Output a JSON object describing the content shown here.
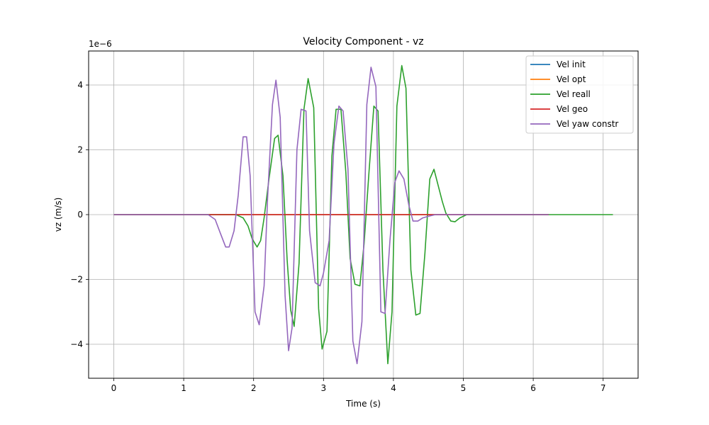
{
  "chart_data": {
    "type": "line",
    "title": "Velocity Component - vz",
    "xlabel": "Time (s)",
    "ylabel": "vz (m/s)",
    "offset_label": "1e−6",
    "xlim": [
      -0.36,
      7.5
    ],
    "ylim": [
      -5.05,
      5.05
    ],
    "xticks": [
      0,
      1,
      2,
      3,
      4,
      5,
      6,
      7
    ],
    "yticks": [
      -4,
      -2,
      0,
      2,
      4
    ],
    "xtick_labels": [
      "0",
      "1",
      "2",
      "3",
      "4",
      "5",
      "6",
      "7"
    ],
    "ytick_labels": [
      "−4",
      "−2",
      "0",
      "2",
      "4"
    ],
    "grid": true,
    "legend_position": "top-right",
    "series": [
      {
        "name": "Vel init",
        "color": "#1f77b4",
        "x": [
          0,
          6.22
        ],
        "y": [
          0,
          0
        ]
      },
      {
        "name": "Vel opt",
        "color": "#ff7f0e",
        "x": [
          0,
          6.22
        ],
        "y": [
          0,
          0
        ]
      },
      {
        "name": "Vel reall",
        "color": "#2ca02c",
        "x": [
          0,
          1.4,
          1.75,
          1.85,
          1.92,
          1.98,
          2.05,
          2.1,
          2.15,
          2.22,
          2.3,
          2.35,
          2.42,
          2.48,
          2.53,
          2.58,
          2.65,
          2.72,
          2.78,
          2.86,
          2.93,
          2.98,
          3.05,
          3.12,
          3.18,
          3.25,
          3.32,
          3.38,
          3.45,
          3.52,
          3.58,
          3.65,
          3.72,
          3.78,
          3.85,
          3.92,
          3.98,
          4.05,
          4.12,
          4.18,
          4.25,
          4.32,
          4.38,
          4.45,
          4.52,
          4.58,
          4.64,
          4.7,
          4.75,
          4.82,
          4.88,
          4.95,
          5.05,
          5.2,
          7.14
        ],
        "y": [
          0,
          0,
          0,
          -0.1,
          -0.35,
          -0.75,
          -1.0,
          -0.8,
          -0.1,
          1.1,
          2.35,
          2.45,
          1.2,
          -1.4,
          -2.95,
          -3.45,
          -1.5,
          3.25,
          4.2,
          3.3,
          -2.9,
          -4.15,
          -3.6,
          1.8,
          3.25,
          3.25,
          1.3,
          -1.35,
          -2.15,
          -2.2,
          -0.9,
          1.3,
          3.35,
          3.2,
          -1.7,
          -4.6,
          -3.0,
          3.35,
          4.6,
          3.9,
          -1.7,
          -3.1,
          -3.05,
          -1.2,
          1.1,
          1.4,
          0.9,
          0.4,
          0.05,
          -0.2,
          -0.22,
          -0.1,
          0,
          0,
          0
        ]
      },
      {
        "name": "Vel geo",
        "color": "#d62728",
        "x": [
          0,
          6.22
        ],
        "y": [
          0,
          0
        ]
      },
      {
        "name": "Vel yaw constr",
        "color": "#9467bd",
        "x": [
          0,
          1.35,
          1.45,
          1.52,
          1.6,
          1.65,
          1.72,
          1.78,
          1.85,
          1.9,
          1.95,
          2.02,
          2.08,
          2.15,
          2.2,
          2.27,
          2.32,
          2.38,
          2.45,
          2.5,
          2.55,
          2.62,
          2.68,
          2.75,
          2.8,
          2.88,
          2.95,
          3.0,
          3.08,
          3.15,
          3.22,
          3.28,
          3.35,
          3.42,
          3.48,
          3.55,
          3.62,
          3.68,
          3.75,
          3.82,
          3.88,
          3.95,
          4.02,
          4.08,
          4.15,
          4.22,
          4.28,
          4.35,
          4.42,
          4.5,
          4.6,
          4.75,
          4.9,
          6.22
        ],
        "y": [
          0,
          0,
          -0.15,
          -0.55,
          -1.0,
          -1.0,
          -0.5,
          0.6,
          2.4,
          2.4,
          1.2,
          -3.0,
          -3.4,
          -2.2,
          0.5,
          3.4,
          4.15,
          3.0,
          -2.5,
          -4.2,
          -3.5,
          2.0,
          3.25,
          3.2,
          -0.5,
          -2.1,
          -2.2,
          -1.8,
          -0.8,
          2.2,
          3.35,
          3.2,
          1.4,
          -3.9,
          -4.6,
          -3.3,
          3.4,
          4.55,
          3.95,
          -3.0,
          -3.05,
          -0.8,
          1.0,
          1.35,
          1.1,
          0.3,
          -0.2,
          -0.2,
          -0.1,
          -0.05,
          0,
          0,
          0,
          0
        ]
      }
    ]
  }
}
